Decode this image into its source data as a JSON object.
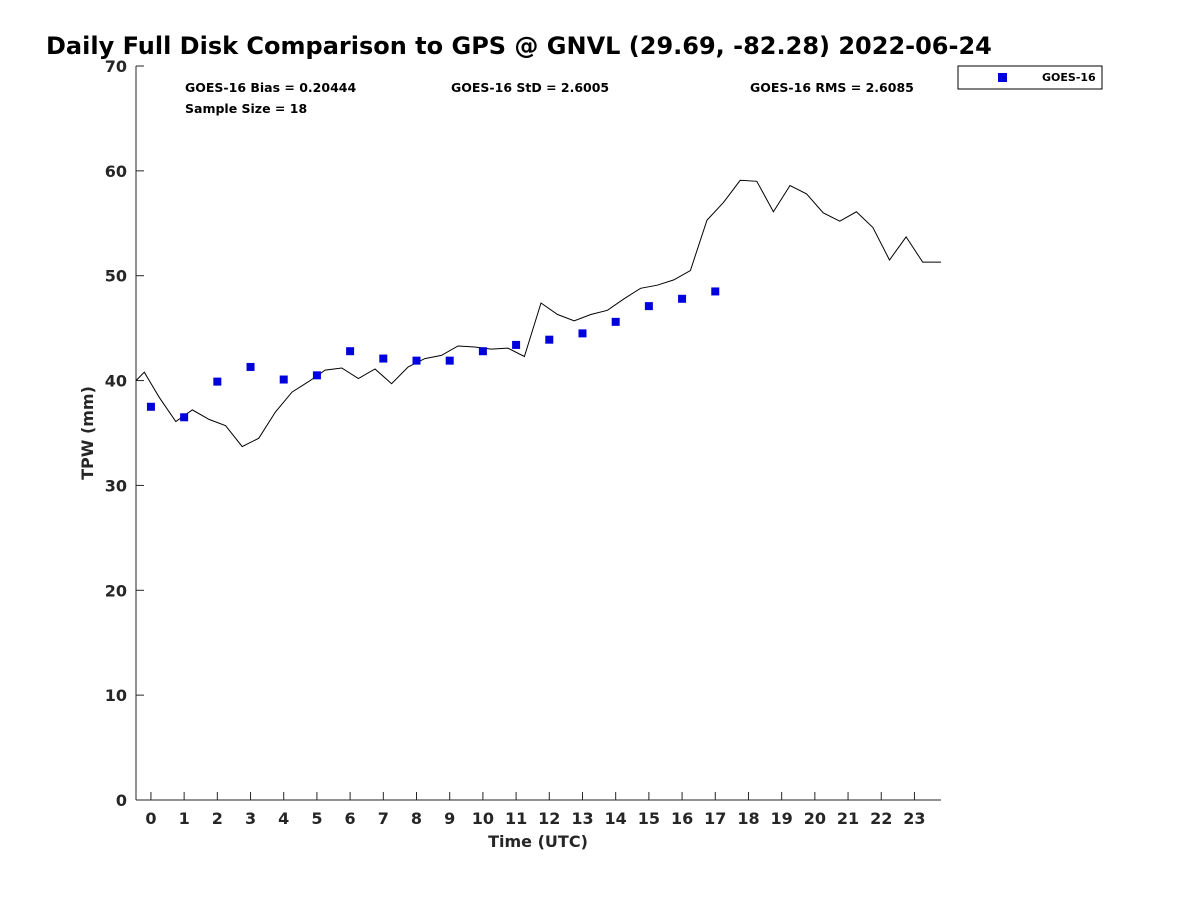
{
  "colors": {
    "marker": "#0000dd",
    "line": "#000000",
    "axis": "#262626"
  },
  "chart_data": {
    "type": "scatter",
    "title": "Daily Full Disk Comparison to GPS @ GNVL (29.69, -82.28) 2022-06-24",
    "xlabel": "Time (UTC)",
    "ylabel": "TPW (mm)",
    "xlim": [
      -0.45,
      23.8
    ],
    "ylim": [
      0,
      70
    ],
    "x_ticks": [
      0,
      1,
      2,
      3,
      4,
      5,
      6,
      7,
      8,
      9,
      10,
      11,
      12,
      13,
      14,
      15,
      16,
      17,
      18,
      19,
      20,
      21,
      22,
      23
    ],
    "y_ticks": [
      0,
      10,
      20,
      30,
      40,
      50,
      60,
      70
    ],
    "grid": false,
    "legend_position": "top-right, outside plot",
    "annotations": {
      "bias": "GOES-16 Bias = 0.20444",
      "std": "GOES-16 StD = 2.6005",
      "rms": "GOES-16 RMS = 2.6085",
      "sample": "Sample Size = 18"
    },
    "series": [
      {
        "name": "GOES-16",
        "type": "scatter",
        "marker": "square",
        "x": [
          0.0,
          1.0,
          2.0,
          3.0,
          4.0,
          5.0,
          6.0,
          7.0,
          8.0,
          9.0,
          10.0,
          11.0,
          12.0,
          13.0,
          14.0,
          15.0,
          16.0,
          17.0
        ],
        "y": [
          37.5,
          36.5,
          39.9,
          41.3,
          40.1,
          40.5,
          42.8,
          42.1,
          41.9,
          41.9,
          42.8,
          43.4,
          43.9,
          44.5,
          45.6,
          47.1,
          47.8,
          48.5
        ]
      },
      {
        "type": "line",
        "x": [
          -0.45,
          -0.2,
          0.25,
          0.75,
          1.25,
          1.75,
          2.25,
          2.75,
          3.25,
          3.75,
          4.25,
          4.75,
          5.25,
          5.75,
          6.25,
          6.75,
          7.25,
          7.75,
          8.25,
          8.75,
          9.25,
          9.75,
          10.25,
          10.75,
          11.25,
          11.75,
          12.25,
          12.75,
          13.25,
          13.75,
          14.25,
          14.75,
          15.25,
          15.75,
          16.25,
          16.75,
          17.25,
          17.75,
          18.25,
          18.75,
          19.25,
          19.75,
          20.25,
          20.75,
          21.25,
          21.75,
          22.25,
          22.75,
          23.25,
          23.8
        ],
        "y": [
          40.0,
          40.8,
          38.4,
          36.1,
          37.2,
          36.3,
          35.7,
          33.7,
          34.5,
          37.0,
          38.9,
          39.9,
          41.0,
          41.2,
          40.2,
          41.1,
          39.7,
          41.3,
          42.1,
          42.4,
          43.3,
          43.2,
          43.0,
          43.1,
          42.3,
          47.4,
          46.3,
          45.7,
          46.3,
          46.7,
          47.8,
          48.8,
          49.1,
          49.6,
          50.5,
          55.3,
          57.0,
          59.1,
          59.0,
          56.1,
          58.6,
          57.8,
          56.0,
          55.2,
          56.1,
          54.6,
          51.5,
          53.7,
          51.3,
          51.3
        ]
      }
    ]
  }
}
